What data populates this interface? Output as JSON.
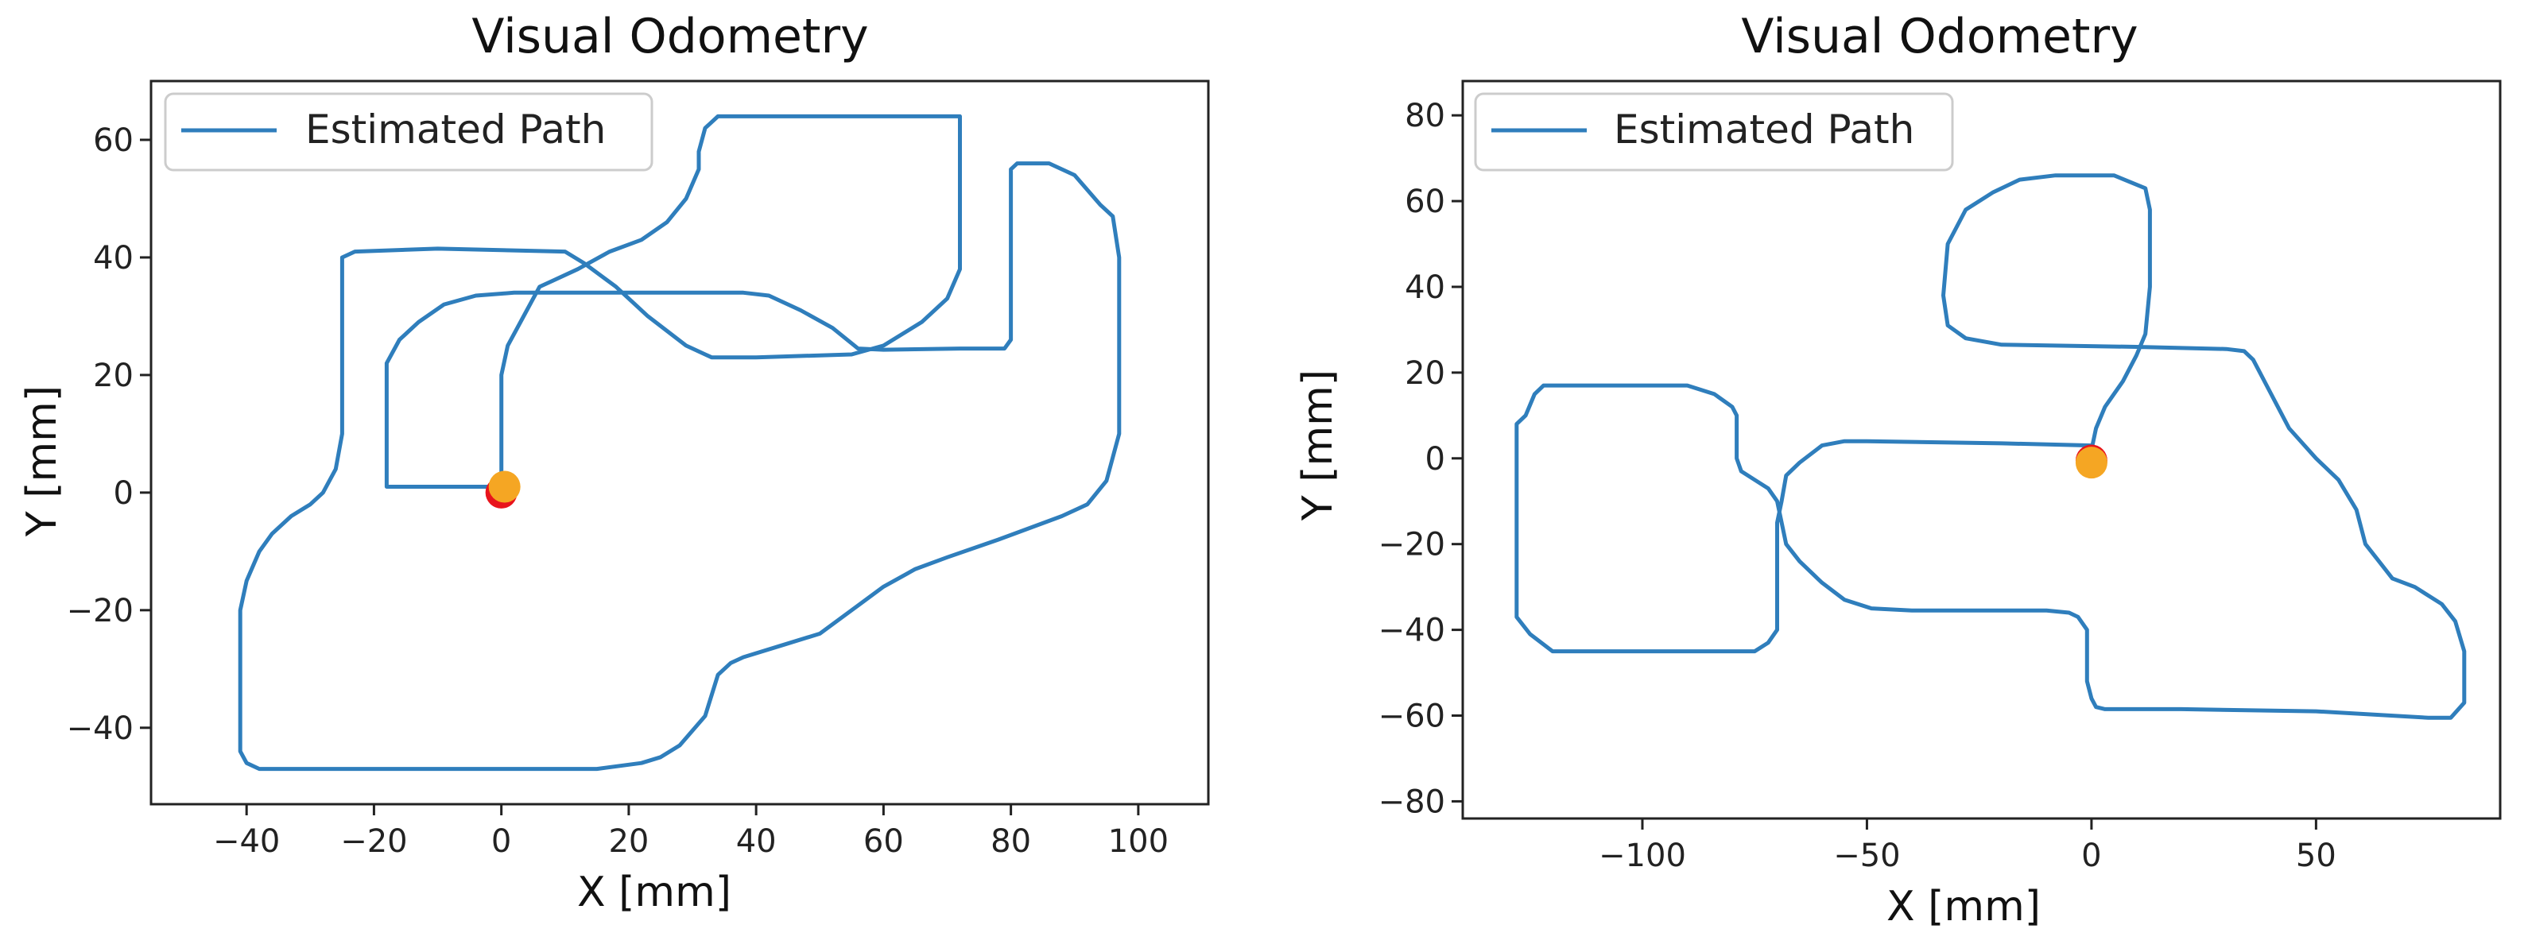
{
  "chart_data": [
    {
      "type": "line",
      "title": "Visual Odometry",
      "xlabel": "X [mm]",
      "ylabel": "Y [mm]",
      "xlim": [
        -55,
        111
      ],
      "ylim": [
        -53,
        70
      ],
      "xticks": [
        -40,
        -20,
        0,
        20,
        40,
        60,
        80,
        100
      ],
      "yticks": [
        -40,
        -20,
        0,
        20,
        40,
        60
      ],
      "tick_labels_x": [
        "−40",
        "−20",
        "0",
        "20",
        "40",
        "60",
        "80",
        "100"
      ],
      "tick_labels_y": [
        "−40",
        "−20",
        "0",
        "20",
        "40",
        "60"
      ],
      "grid": false,
      "legend": {
        "placement": "top-left",
        "entries": [
          "Estimated Path"
        ]
      },
      "series": [
        {
          "name": "Estimated Path",
          "color": "#2f7ebc",
          "points": [
            [
              0,
              1
            ],
            [
              -18,
              1
            ],
            [
              -18,
              3
            ],
            [
              -18,
              22
            ],
            [
              -16,
              26
            ],
            [
              -13,
              29
            ],
            [
              -9,
              32
            ],
            [
              -4,
              33.5
            ],
            [
              2,
              34
            ],
            [
              20,
              34
            ],
            [
              38,
              34
            ],
            [
              42,
              33.5
            ],
            [
              47,
              31
            ],
            [
              52,
              28
            ],
            [
              56,
              24.5
            ],
            [
              60,
              24.3
            ],
            [
              72,
              24.5
            ],
            [
              79,
              24.5
            ],
            [
              80,
              26
            ],
            [
              80,
              55
            ],
            [
              81,
              56
            ],
            [
              86,
              56
            ],
            [
              90,
              54
            ],
            [
              94,
              49
            ],
            [
              96,
              47
            ],
            [
              97,
              40
            ],
            [
              97,
              10
            ],
            [
              95,
              2
            ],
            [
              92,
              -2
            ],
            [
              88,
              -4
            ],
            [
              78,
              -8
            ],
            [
              70,
              -11
            ],
            [
              65,
              -13
            ],
            [
              60,
              -16
            ],
            [
              55,
              -20
            ],
            [
              50,
              -24
            ],
            [
              44,
              -26
            ],
            [
              38,
              -28
            ],
            [
              36,
              -29
            ],
            [
              34,
              -31
            ],
            [
              32,
              -38
            ],
            [
              28,
              -43
            ],
            [
              25,
              -45
            ],
            [
              22,
              -46
            ],
            [
              15,
              -47
            ],
            [
              0,
              -47
            ],
            [
              -20,
              -47
            ],
            [
              -38,
              -47
            ],
            [
              -40,
              -46
            ],
            [
              -41,
              -44
            ],
            [
              -41,
              -20
            ],
            [
              -40,
              -15
            ],
            [
              -38,
              -10
            ],
            [
              -36,
              -7
            ],
            [
              -33,
              -4
            ],
            [
              -30,
              -2
            ],
            [
              -28,
              0
            ],
            [
              -26,
              4
            ],
            [
              -25,
              10
            ],
            [
              -25,
              40
            ],
            [
              -23,
              41
            ],
            [
              -10,
              41.5
            ],
            [
              10,
              41
            ],
            [
              13,
              39
            ],
            [
              18,
              35
            ],
            [
              23,
              30
            ],
            [
              29,
              25
            ],
            [
              33,
              23
            ],
            [
              40,
              23
            ],
            [
              55,
              23.5
            ],
            [
              60,
              25
            ],
            [
              66,
              29
            ],
            [
              70,
              33
            ],
            [
              72,
              38
            ],
            [
              72,
              55
            ],
            [
              72,
              64
            ],
            [
              60,
              64
            ],
            [
              40,
              64
            ],
            [
              34,
              64
            ],
            [
              32,
              62
            ],
            [
              31,
              58
            ],
            [
              31,
              55
            ],
            [
              29,
              50
            ],
            [
              26,
              46
            ],
            [
              22,
              43
            ],
            [
              17,
              41
            ],
            [
              12,
              38
            ],
            [
              8,
              36
            ],
            [
              6,
              35
            ],
            [
              4,
              31
            ],
            [
              1,
              25
            ],
            [
              0,
              20
            ],
            [
              0,
              15
            ],
            [
              0,
              0
            ]
          ],
          "markers": [
            {
              "x": 0,
              "y": 0,
              "color": "#e8141c"
            },
            {
              "x": 0.5,
              "y": 1,
              "color": "#f5a623"
            }
          ]
        }
      ]
    },
    {
      "type": "line",
      "title": "Visual Odometry",
      "xlabel": "X [mm]",
      "ylabel": "Y [mm]",
      "xlim": [
        -140,
        91
      ],
      "ylim": [
        -84,
        88
      ],
      "xticks": [
        -100,
        -50,
        0,
        50
      ],
      "yticks": [
        -80,
        -60,
        -40,
        -20,
        0,
        20,
        40,
        60,
        80
      ],
      "tick_labels_x": [
        "−100",
        "−50",
        "0",
        "50"
      ],
      "tick_labels_y": [
        "−80",
        "−60",
        "−40",
        "−20",
        "0",
        "20",
        "40",
        "60",
        "80"
      ],
      "grid": false,
      "legend": {
        "placement": "top-left",
        "entries": [
          "Estimated Path"
        ]
      },
      "series": [
        {
          "name": "Estimated Path",
          "color": "#2f7ebc",
          "points": [
            [
              0,
              3
            ],
            [
              -20,
              3.5
            ],
            [
              -50,
              4
            ],
            [
              -55,
              4
            ],
            [
              -60,
              3
            ],
            [
              -65,
              -1
            ],
            [
              -68,
              -4
            ],
            [
              -69,
              -10
            ],
            [
              -70,
              -15
            ],
            [
              -70,
              -40
            ],
            [
              -72,
              -43
            ],
            [
              -75,
              -45
            ],
            [
              -80,
              -45
            ],
            [
              -100,
              -45
            ],
            [
              -115,
              -45
            ],
            [
              -120,
              -45
            ],
            [
              -125,
              -41
            ],
            [
              -128,
              -37
            ],
            [
              -128,
              -32
            ],
            [
              -128,
              -8
            ],
            [
              -128,
              8
            ],
            [
              -126,
              10
            ],
            [
              -124,
              15
            ],
            [
              -122,
              17
            ],
            [
              -120,
              17
            ],
            [
              -100,
              17
            ],
            [
              -90,
              17
            ],
            [
              -84,
              15
            ],
            [
              -80,
              12
            ],
            [
              -79,
              10
            ],
            [
              -79,
              0
            ],
            [
              -78,
              -3
            ],
            [
              -75,
              -5
            ],
            [
              -72,
              -7
            ],
            [
              -70,
              -10
            ],
            [
              -68,
              -20
            ],
            [
              -65,
              -24
            ],
            [
              -60,
              -29
            ],
            [
              -55,
              -33
            ],
            [
              -49,
              -35
            ],
            [
              -40,
              -35.5
            ],
            [
              -10,
              -35.5
            ],
            [
              -5,
              -36
            ],
            [
              -3,
              -37
            ],
            [
              -1,
              -40
            ],
            [
              -1,
              -52
            ],
            [
              0,
              -56
            ],
            [
              1,
              -58
            ],
            [
              3,
              -58.5
            ],
            [
              20,
              -58.5
            ],
            [
              50,
              -59
            ],
            [
              75,
              -60.5
            ],
            [
              80,
              -60.5
            ],
            [
              83,
              -57
            ],
            [
              83,
              -45
            ],
            [
              81,
              -38
            ],
            [
              78,
              -34
            ],
            [
              72,
              -30
            ],
            [
              67,
              -28
            ],
            [
              64,
              -24
            ],
            [
              61,
              -20
            ],
            [
              59,
              -12
            ],
            [
              55,
              -5
            ],
            [
              50,
              0
            ],
            [
              44,
              7
            ],
            [
              40,
              15
            ],
            [
              36,
              23
            ],
            [
              34,
              25
            ],
            [
              30,
              25.5
            ],
            [
              10,
              26
            ],
            [
              -20,
              26.5
            ],
            [
              -28,
              28
            ],
            [
              -32,
              31
            ],
            [
              -33,
              38
            ],
            [
              -32,
              50
            ],
            [
              -28,
              58
            ],
            [
              -22,
              62
            ],
            [
              -16,
              65
            ],
            [
              -8,
              66
            ],
            [
              5,
              66
            ],
            [
              12,
              63
            ],
            [
              13,
              58
            ],
            [
              13,
              40
            ],
            [
              12,
              29
            ],
            [
              10,
              24
            ],
            [
              7,
              18
            ],
            [
              3,
              12
            ],
            [
              1,
              7
            ],
            [
              0,
              2
            ],
            [
              0,
              0
            ]
          ],
          "markers": [
            {
              "x": 0,
              "y": -0.5,
              "color": "#e8141c"
            },
            {
              "x": 0,
              "y": -1,
              "color": "#f5a623"
            }
          ]
        }
      ]
    }
  ]
}
